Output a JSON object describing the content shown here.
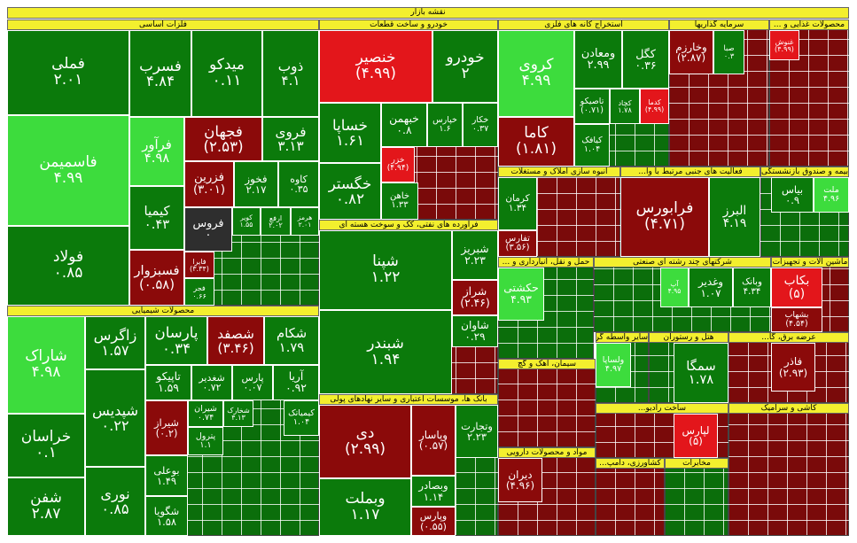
{
  "chart_data": {
    "type": "treemap",
    "title": "نقشه بازار",
    "sectors": [
      {
        "name": "فلزات اساسی",
        "cells": [
          {
            "name": "فملی",
            "change": "۲.۰۱",
            "color": "#0b7a0b"
          },
          {
            "name": "فاسمیمن",
            "change": "۴.۹۹",
            "color": "#3ddc3d"
          },
          {
            "name": "فولاد",
            "change": "۰.۸۵",
            "color": "#0b7a0b"
          },
          {
            "name": "فسرب",
            "change": "۴.۸۴",
            "color": "#0b7a0b"
          },
          {
            "name": "میدکو",
            "change": "۰.۱۱",
            "color": "#0b7a0b"
          },
          {
            "name": "ذوب",
            "change": "۴.۱",
            "color": "#0b7a0b"
          },
          {
            "name": "فرآور",
            "change": "۴.۹۸",
            "color": "#3ddc3d"
          },
          {
            "name": "فجهان",
            "change": "(۲.۵۳)",
            "color": "#8b0a0a"
          },
          {
            "name": "فروی",
            "change": "۳.۱۳",
            "color": "#0b7a0b"
          },
          {
            "name": "کیمیا",
            "change": "۰.۴۳",
            "color": "#0b7a0b"
          },
          {
            "name": "فزرین",
            "change": "(۳.۰۱)",
            "color": "#8b0a0a"
          },
          {
            "name": "فخوز",
            "change": "۲.۱۷",
            "color": "#0b7a0b"
          },
          {
            "name": "کاوه",
            "change": "۰.۳۵",
            "color": "#0b7a0b"
          },
          {
            "name": "فروس",
            "change": "۰",
            "color": "#2e2e2e"
          },
          {
            "name": "کویر",
            "change": "۱.۵۵",
            "color": "#0b7a0b"
          },
          {
            "name": "ارفع",
            "change": "۲.۰۲",
            "color": "#0b7a0b"
          },
          {
            "name": "هرمز",
            "change": "۲.۰۱",
            "color": "#0b7a0b"
          },
          {
            "name": "فسبزوار",
            "change": "(۰.۵۸)",
            "color": "#8b0a0a"
          },
          {
            "name": "فایرا",
            "change": "(۳.۳۴)",
            "color": "#8b0a0a"
          },
          {
            "name": "فجر",
            "change": "۰.۶۶",
            "color": "#0b7a0b"
          }
        ]
      },
      {
        "name": "محصولات شیمیایی",
        "cells": [
          {
            "name": "شاراک",
            "change": "۴.۹۸",
            "color": "#3ddc3d"
          },
          {
            "name": "خراسان",
            "change": "۰.۱",
            "color": "#0b7a0b"
          },
          {
            "name": "شفن",
            "change": "۲.۸۷",
            "color": "#0b7a0b"
          },
          {
            "name": "زاگرس",
            "change": "۱.۵۷",
            "color": "#0b7a0b"
          },
          {
            "name": "شپدیس",
            "change": "۰.۲۲",
            "color": "#0b7a0b"
          },
          {
            "name": "نوری",
            "change": "۰.۸۵",
            "color": "#0b7a0b"
          },
          {
            "name": "پارسان",
            "change": "۰.۳۴",
            "color": "#0b7a0b"
          },
          {
            "name": "شصفد",
            "change": "(۳.۴۶)",
            "color": "#8b0a0a"
          },
          {
            "name": "شکام",
            "change": "۱.۷۹",
            "color": "#0b7a0b"
          },
          {
            "name": "تاپیکو",
            "change": "۱.۵۹",
            "color": "#0b7a0b"
          },
          {
            "name": "شغدیر",
            "change": "۰.۷۲",
            "color": "#0b7a0b"
          },
          {
            "name": "پارس",
            "change": "۰.۰۷",
            "color": "#0b7a0b"
          },
          {
            "name": "آریا",
            "change": "۰.۹۲",
            "color": "#0b7a0b"
          },
          {
            "name": "شیراز",
            "change": "(۰.۲)",
            "color": "#8b0a0a"
          },
          {
            "name": "شیران",
            "change": "۰.۷۴",
            "color": "#0b7a0b"
          },
          {
            "name": "شخارک",
            "change": "۴.۱۳",
            "color": "#0b7a0b"
          },
          {
            "name": "کیمیاتک",
            "change": "۱.۰۴",
            "color": "#0b7a0b"
          },
          {
            "name": "پترول",
            "change": "۱.۱",
            "color": "#0b7a0b"
          },
          {
            "name": "بوعلی",
            "change": "۱.۴۹",
            "color": "#0b7a0b"
          },
          {
            "name": "شگویا",
            "change": "۱.۵۸",
            "color": "#0b7a0b"
          }
        ]
      },
      {
        "name": "خودرو و ساخت قطعات",
        "cells": [
          {
            "name": "خنصیر",
            "change": "(۴.۹۹)",
            "color": "#e3161b"
          },
          {
            "name": "خودرو",
            "change": "۲",
            "color": "#0b7a0b"
          },
          {
            "name": "خساپا",
            "change": "۱.۶۱",
            "color": "#0b7a0b"
          },
          {
            "name": "خبهمن",
            "change": "۰.۸",
            "color": "#0b7a0b"
          },
          {
            "name": "خپارس",
            "change": "۱.۶",
            "color": "#0b7a0b"
          },
          {
            "name": "خکار",
            "change": "۰.۳۷",
            "color": "#0b7a0b"
          },
          {
            "name": "خگستر",
            "change": "۰.۸۲",
            "color": "#0b7a0b"
          },
          {
            "name": "خزر",
            "change": "(۴.۹۴)",
            "color": "#e3161b"
          },
          {
            "name": "خاهن",
            "change": "۱.۳۳",
            "color": "#0b7a0b"
          }
        ]
      },
      {
        "name": "فرآورده های نفتی، کک و سوخت هسته ای",
        "cells": [
          {
            "name": "شپنا",
            "change": "۱.۲۲",
            "color": "#0b7a0b"
          },
          {
            "name": "شبندر",
            "change": "۱.۹۴",
            "color": "#0b7a0b"
          },
          {
            "name": "شبریز",
            "change": "۲.۲۳",
            "color": "#0b7a0b"
          },
          {
            "name": "شراز",
            "change": "(۲.۴۶)",
            "color": "#8b0a0a"
          },
          {
            "name": "شاوان",
            "change": "۰.۲۹",
            "color": "#0b7a0b"
          }
        ]
      },
      {
        "name": "بانک ها، موسسات اعتباری و سایر نهادهای پولی",
        "cells": [
          {
            "name": "دی",
            "change": "(۲.۹۹)",
            "color": "#8b0a0a"
          },
          {
            "name": "وبملت",
            "change": "۱.۱۷",
            "color": "#0b7a0b"
          },
          {
            "name": "وپاسار",
            "change": "(۰.۵۷)",
            "color": "#8b0a0a"
          },
          {
            "name": "وتجارت",
            "change": "۲.۲۳",
            "color": "#0b7a0b"
          },
          {
            "name": "وبصادر",
            "change": "۱.۱۴",
            "color": "#0b7a0b"
          },
          {
            "name": "وپارس",
            "change": "(۰.۵۵)",
            "color": "#8b0a0a"
          }
        ]
      },
      {
        "name": "استخراج کانه های فلزی",
        "cells": [
          {
            "name": "کروی",
            "change": "۴.۹۹",
            "color": "#3ddc3d"
          },
          {
            "name": "ومعادن",
            "change": "۲.۹۹",
            "color": "#0b7a0b"
          },
          {
            "name": "کگل",
            "change": "۰.۳۶",
            "color": "#0b7a0b"
          },
          {
            "name": "کاما",
            "change": "(۱.۸۱)",
            "color": "#8b0a0a"
          },
          {
            "name": "تاصیکو",
            "change": "(۰.۷۱)",
            "color": "#0b7a0b"
          },
          {
            "name": "کچاد",
            "change": "۱.۷۸",
            "color": "#0b7a0b"
          },
          {
            "name": "کدما",
            "change": "(۴.۹۹)",
            "color": "#e3161b"
          },
          {
            "name": "کیافک",
            "change": "۱.۰۴",
            "color": "#0b7a0b"
          }
        ]
      },
      {
        "name": "سرمایه گذاریها",
        "cells": [
          {
            "name": "وخارزم",
            "change": "(۲.۸۷)",
            "color": "#8b0a0a"
          },
          {
            "name": "صبا",
            "change": "۰.۳",
            "color": "#0b7a0b"
          }
        ]
      },
      {
        "name": "محصولات غذایی و ...",
        "cells": [
          {
            "name": "غنوش",
            "change": "(۴.۹۹)",
            "color": "#e3161b"
          }
        ]
      },
      {
        "name": "انبوه سازی املاک و مستغلات",
        "cells": [
          {
            "name": "کرمان",
            "change": "۱.۳۴",
            "color": "#0b7a0b"
          },
          {
            "name": "تفارس",
            "change": "(۳.۵۶)",
            "color": "#8b0a0a"
          }
        ]
      },
      {
        "name": "فعالیت های جنبی مرتبط با وا...",
        "cells": [
          {
            "name": "فرابورس",
            "change": "(۴.۷۱)",
            "color": "#8b0a0a"
          },
          {
            "name": "البرز",
            "change": "۴.۱۹",
            "color": "#0b7a0b"
          }
        ]
      },
      {
        "name": "بیمه و صندوق بازنشستگی به...",
        "cells": [
          {
            "name": "بیاس",
            "change": "۰.۹",
            "color": "#0b7a0b"
          },
          {
            "name": "ملت",
            "change": "۴.۹۶",
            "color": "#3ddc3d"
          }
        ]
      },
      {
        "name": "حمل و نقل، انبارداری و ...",
        "cells": [
          {
            "name": "حکشتی",
            "change": "۴.۹۳",
            "color": "#3ddc3d"
          }
        ]
      },
      {
        "name": "شرکتهای چند رشته ای صنعتی",
        "cells": [
          {
            "name": "آپ",
            "change": "۴.۹۵",
            "color": "#3ddc3d"
          },
          {
            "name": "وغدیر",
            "change": "۱.۰۷",
            "color": "#0b7a0b"
          },
          {
            "name": "وبانک",
            "change": "۴.۳۴",
            "color": "#0b7a0b"
          }
        ]
      },
      {
        "name": "ماشین آلات و تجهیزات",
        "cells": [
          {
            "name": "بکاب",
            "change": "(۵)",
            "color": "#e3161b"
          },
          {
            "name": "بشهاب",
            "change": "(۴.۵۴)",
            "color": "#8b0a0a"
          }
        ]
      },
      {
        "name": "سیمان، آهک و گچ",
        "cells": []
      },
      {
        "name": "مواد و محصولات دارویی",
        "cells": [
          {
            "name": "دیران",
            "change": "(۴.۹۶)",
            "color": "#8b0a0a"
          }
        ]
      },
      {
        "name": "سایر واسطه گر...",
        "cells": [
          {
            "name": "ولساپا",
            "change": "۴.۹۷",
            "color": "#3ddc3d"
          }
        ]
      },
      {
        "name": "هتل و رستوران",
        "cells": [
          {
            "name": "سمگا",
            "change": "۱.۷۸",
            "color": "#0b7a0b"
          }
        ]
      },
      {
        "name": "عرضه برق، گا...",
        "cells": [
          {
            "name": "فاذر",
            "change": "(۲.۹۳)",
            "color": "#8b0a0a"
          }
        ]
      },
      {
        "name": "ساخت رادیو...",
        "cells": [
          {
            "name": "لپارس",
            "change": "(۵)",
            "color": "#e3161b"
          }
        ]
      },
      {
        "name": "کاشی و سرامیک",
        "cells": []
      },
      {
        "name": "کشاورزی، دامپ...",
        "cells": []
      },
      {
        "name": "مخابرات",
        "cells": []
      }
    ]
  }
}
